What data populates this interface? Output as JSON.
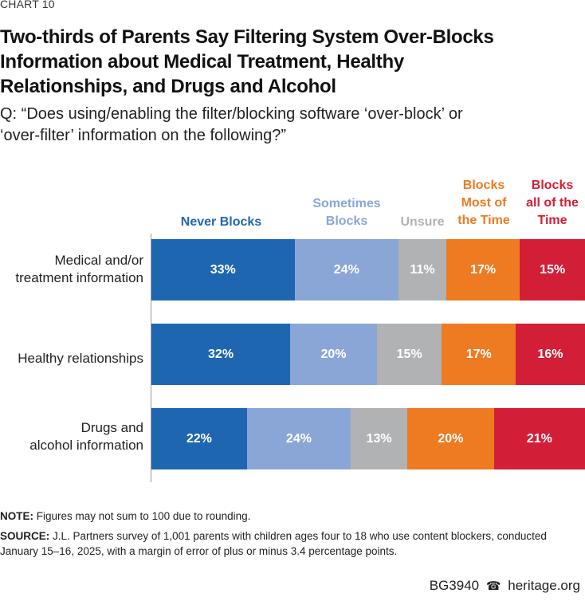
{
  "header": {
    "chart_number": "CHART 10",
    "title_line1": "Two-thirds of Parents Say Filtering System Over-Blocks",
    "title_line2": "Information about Medical Treatment, Healthy",
    "title_line3": "Relationships, and Drugs and Alcohol",
    "question_line1": "Q: “Does using/enabling the filter/blocking software ‘over-block’ or",
    "question_line2": "‘over-filter’ information on the following?”"
  },
  "legend": [
    {
      "line1": "Never Blocks",
      "line2": "",
      "color": "#1f66b1"
    },
    {
      "line1": "Sometimes",
      "line2": "Blocks",
      "color": "#8aa6d7"
    },
    {
      "line1": "Unsure",
      "line2": "",
      "color": "#b1b2b4"
    },
    {
      "line1": "Blocks",
      "line2": "Most of",
      "line3": "the Time",
      "color": "#ee7a22"
    },
    {
      "line1": "Blocks",
      "line2": "all of the",
      "line3": "Time",
      "color": "#d21e36"
    }
  ],
  "chart_data": {
    "type": "bar",
    "orientation": "horizontal-stacked-100",
    "categories": [
      "Medical and/or treatment information",
      "Healthy relationships",
      "Drugs and alcohol information"
    ],
    "category_labels": [
      [
        "Medical and/or",
        "treatment information"
      ],
      [
        "Healthy relationships"
      ],
      [
        "Drugs and",
        "alcohol information"
      ]
    ],
    "series": [
      {
        "name": "Never Blocks",
        "values": [
          33,
          32,
          22
        ],
        "color": "#1f66b1"
      },
      {
        "name": "Sometimes Blocks",
        "values": [
          24,
          20,
          24
        ],
        "color": "#8aa6d7"
      },
      {
        "name": "Unsure",
        "values": [
          11,
          15,
          13
        ],
        "color": "#b1b2b4"
      },
      {
        "name": "Blocks Most of the Time",
        "values": [
          17,
          17,
          20
        ],
        "color": "#ee7a22"
      },
      {
        "name": "Blocks all of the Time",
        "values": [
          15,
          16,
          21
        ],
        "color": "#d21e36"
      }
    ],
    "unit": "%"
  },
  "notes": {
    "note_label": "NOTE:",
    "note_text": "Figures may not sum to 100 due to rounding.",
    "source_label": "SOURCE:",
    "source_text_line1": "J.L. Partners survey of 1,001 parents with children ages four to 18 who use content blockers, conducted",
    "source_text_line2": "January 15–16, 2025, with a margin of error of plus or minus 3.4 percentage points."
  },
  "footer": {
    "code": "BG3940",
    "site": "heritage.org"
  }
}
